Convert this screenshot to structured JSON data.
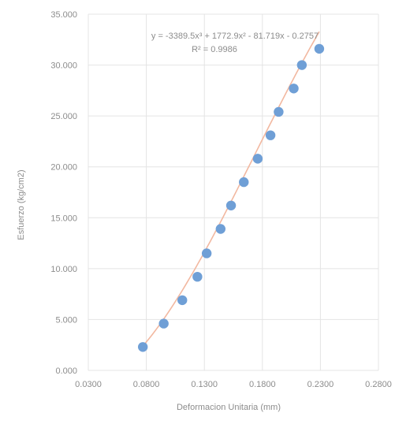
{
  "chart_data": {
    "type": "scatter",
    "title": "",
    "xlabel": "Deformacion Unitaria (mm)",
    "ylabel": "Esfuerzo (kg/cm2)",
    "xlim": [
      0.03,
      0.28
    ],
    "ylim": [
      0,
      35
    ],
    "x_ticks": [
      "0.0300",
      "0.0800",
      "0.1300",
      "0.1800",
      "0.2300",
      "0.2800"
    ],
    "y_ticks": [
      "0.000",
      "5.000",
      "10.000",
      "15.000",
      "20.000",
      "25.000",
      "30.000",
      "35.000"
    ],
    "grid": true,
    "trendline": {
      "type": "polynomial",
      "equation": "y = -3389.5x³ + 1772.9x² - 81.719x - 0.2757",
      "r_squared": "R² = 0.9986",
      "coefficients": [
        -3389.5,
        1772.9,
        -81.719,
        -0.2757
      ],
      "color": "#f2b8a0"
    },
    "series": [
      {
        "marker_color": "#6f9fd6",
        "x": [
          0.077,
          0.095,
          0.111,
          0.124,
          0.132,
          0.144,
          0.153,
          0.164,
          0.176,
          0.187,
          0.194,
          0.207,
          0.214,
          0.229
        ],
        "y": [
          2.3,
          4.6,
          6.9,
          9.2,
          11.5,
          13.9,
          16.2,
          18.5,
          20.8,
          23.1,
          25.4,
          27.7,
          30.0,
          31.6
        ]
      }
    ]
  }
}
